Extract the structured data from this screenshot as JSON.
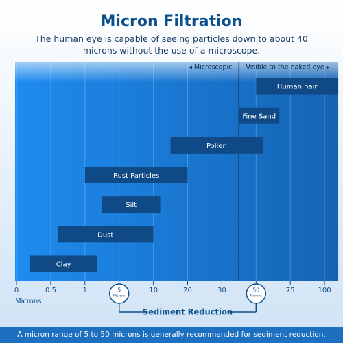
{
  "chart_data": {
    "type": "range_bar",
    "title": "Micron Filtration",
    "subtitle": "The human eye is capable of seeing particles down to about 40 microns without the use of a microscope.",
    "categories": [
      "Human hair",
      "Fine Sand",
      "Pollen",
      "Rust Particles",
      "Silt",
      "Dust",
      "Clay"
    ],
    "start": [
      50,
      40,
      15,
      1,
      3,
      0.6,
      0.2
    ],
    "end": [
      110,
      67,
      55,
      20,
      12,
      10,
      2.4
    ],
    "color": "#0f4a86",
    "xlim": [
      0,
      110
    ],
    "xticks": [
      0,
      0.5,
      1,
      5,
      10,
      20,
      30,
      50,
      75,
      100
    ],
    "xlabel": "Microns",
    "grid": true,
    "threshold": {
      "value": 40,
      "left_label": "◂ Microscopic",
      "right_label": "Visible to the naked eye ▸"
    },
    "sediment_reduction": {
      "label": "Sediment Reduction",
      "range": [
        5,
        50
      ],
      "unit": "Microns"
    },
    "footer": "A micron range of 5 to 50 microns is generally recommended for sediment reduction."
  }
}
